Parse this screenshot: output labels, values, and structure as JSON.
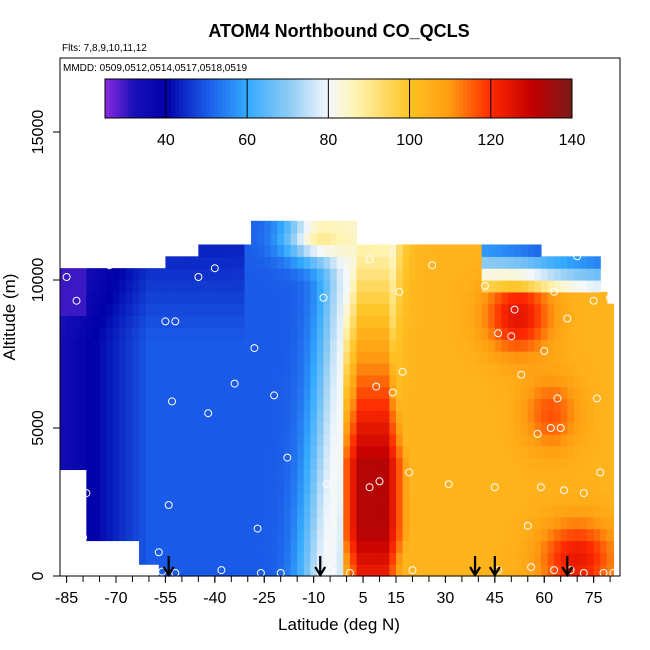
{
  "chart_data": {
    "type": "heatmap",
    "title": "ATOM4 Northbound CO_QCLS",
    "subtitle_flights": "Flts: 7,8,9,10,11,12",
    "subtitle_dates": "MMDD: 0509,0512,0514,0517,0518,0519",
    "xlabel": "Latitude (deg N)",
    "ylabel": "Altitude (m)",
    "xlim": [
      -87,
      83
    ],
    "ylim": [
      0,
      17500
    ],
    "x_ticks": [
      -85,
      -70,
      -55,
      -40,
      -25,
      -10,
      5,
      15,
      30,
      45,
      60,
      75
    ],
    "x_tick_labels": [
      "-85",
      "-70",
      "-55",
      "-40",
      "-25",
      "-10",
      "5",
      "15",
      "30",
      "45",
      "60",
      "75"
    ],
    "y_ticks": [
      0,
      5000,
      10000,
      15000
    ],
    "y_tick_labels": [
      "0",
      "5000",
      "10000",
      "15000"
    ],
    "colorbar": {
      "range": [
        25,
        140
      ],
      "ticks": [
        40,
        60,
        80,
        100,
        120,
        140
      ],
      "tick_labels": [
        "40",
        "60",
        "80",
        "100",
        "120",
        "140"
      ],
      "stops": [
        {
          "v": 25,
          "c": "#8a2be2"
        },
        {
          "v": 32,
          "c": "#1a10b8"
        },
        {
          "v": 40,
          "c": "#0000a8"
        },
        {
          "v": 50,
          "c": "#1a5ae8"
        },
        {
          "v": 60,
          "c": "#33aaff"
        },
        {
          "v": 70,
          "c": "#8ccaf4"
        },
        {
          "v": 80,
          "c": "#f4f8fc"
        },
        {
          "v": 87,
          "c": "#fff4b0"
        },
        {
          "v": 100,
          "c": "#ffc425"
        },
        {
          "v": 110,
          "c": "#ff9a10"
        },
        {
          "v": 120,
          "c": "#ff2a00"
        },
        {
          "v": 130,
          "c": "#c40000"
        },
        {
          "v": 140,
          "c": "#7a1a1a"
        }
      ]
    },
    "field": {
      "lat_min": -87,
      "lat_max": 81,
      "lat_step": 2,
      "alt_step": 400,
      "background_value": 50,
      "tropical_value": 80,
      "tropical_lat_center": -6,
      "tropical_lat_width": 6,
      "north_lat_threshold": 3,
      "north_value": 104,
      "plume_core_value": 132,
      "plume_core_lat": [
        4,
        12
      ],
      "plume_core_alt": [
        1500,
        3800
      ],
      "upper_plume_value": 125,
      "upper_plume_center": [
        52,
        8800
      ],
      "polar_low_value": 30
    },
    "arrows_latitude": [
      -54,
      -8,
      39,
      45,
      67
    ],
    "sample_points": [
      [
        -85,
        10100
      ],
      [
        -82,
        9300
      ],
      [
        -79,
        2800
      ],
      [
        -80,
        1300
      ],
      [
        -72,
        10500
      ],
      [
        -55,
        8600
      ],
      [
        -52,
        8600
      ],
      [
        -53,
        5900
      ],
      [
        -54,
        2400
      ],
      [
        -57,
        800
      ],
      [
        -56,
        150
      ],
      [
        -52,
        100
      ],
      [
        -45,
        10100
      ],
      [
        -40,
        10400
      ],
      [
        -42,
        5500
      ],
      [
        -38,
        200
      ],
      [
        -34,
        6500
      ],
      [
        -28,
        7700
      ],
      [
        -27,
        1600
      ],
      [
        -26,
        100
      ],
      [
        -22,
        6100
      ],
      [
        -20,
        100
      ],
      [
        -18,
        4000
      ],
      [
        -7,
        9400
      ],
      [
        -6,
        3100
      ],
      [
        -5,
        200
      ],
      [
        1,
        100
      ],
      [
        7,
        10700
      ],
      [
        7,
        3000
      ],
      [
        9,
        6400
      ],
      [
        10,
        3200
      ],
      [
        14,
        6200
      ],
      [
        16,
        9600
      ],
      [
        17,
        6900
      ],
      [
        19,
        3500
      ],
      [
        20,
        200
      ],
      [
        26,
        10500
      ],
      [
        31,
        3100
      ],
      [
        42,
        9800
      ],
      [
        45,
        3000
      ],
      [
        46,
        8200
      ],
      [
        46,
        200
      ],
      [
        50,
        8100
      ],
      [
        51,
        9000
      ],
      [
        53,
        6800
      ],
      [
        55,
        1700
      ],
      [
        56,
        300
      ],
      [
        58,
        4800
      ],
      [
        59,
        3000
      ],
      [
        60,
        7600
      ],
      [
        62,
        5000
      ],
      [
        63,
        9600
      ],
      [
        63,
        200
      ],
      [
        64,
        6000
      ],
      [
        65,
        5000
      ],
      [
        66,
        2900
      ],
      [
        67,
        8700
      ],
      [
        68,
        200
      ],
      [
        70,
        10800
      ],
      [
        72,
        2800
      ],
      [
        72,
        100
      ],
      [
        75,
        9300
      ],
      [
        76,
        6000
      ],
      [
        77,
        3500
      ],
      [
        78,
        100
      ],
      [
        80,
        9400
      ],
      [
        81,
        100
      ]
    ]
  }
}
